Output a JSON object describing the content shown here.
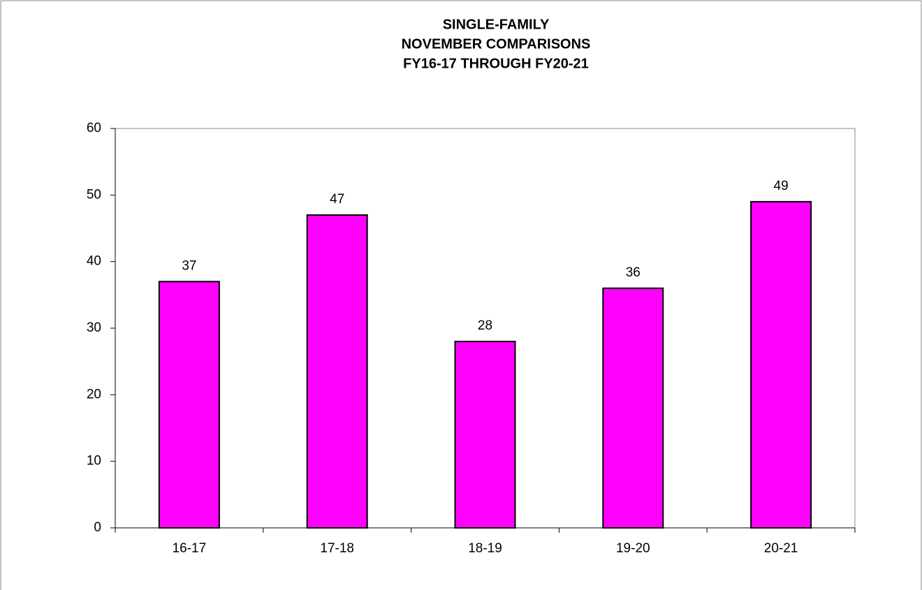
{
  "chart_data": {
    "type": "bar",
    "title": [
      "SINGLE-FAMILY",
      "NOVEMBER COMPARISONS",
      "FY16-17 THROUGH FY20-21"
    ],
    "categories": [
      "16-17",
      "17-18",
      "18-19",
      "19-20",
      "20-21"
    ],
    "values": [
      37,
      47,
      28,
      36,
      49
    ],
    "color": "#ff00ff",
    "ylim": [
      0,
      60
    ],
    "yticks": [
      0,
      10,
      20,
      30,
      40,
      50,
      60
    ],
    "grid": false
  }
}
